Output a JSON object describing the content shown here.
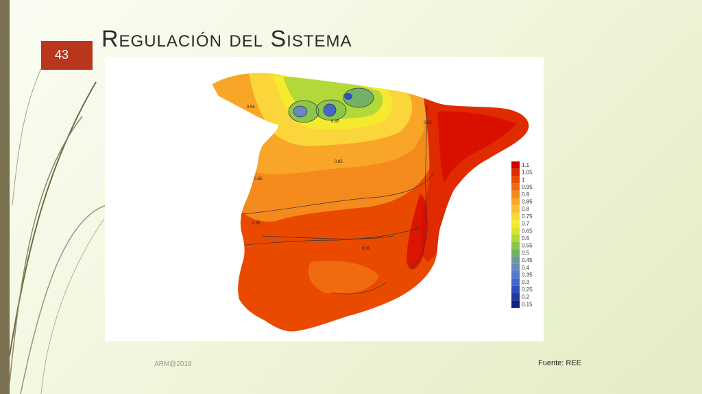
{
  "slide": {
    "number": "43",
    "title": "Regulación del Sistema",
    "footer_left": "ARM@2019",
    "footer_right": "Fuente: REE"
  },
  "map": {
    "region": "Spain",
    "legend": {
      "levels": [
        {
          "label": "1.1",
          "color": "#d40000"
        },
        {
          "label": "1.05",
          "color": "#e02a00"
        },
        {
          "label": "1",
          "color": "#ea4a00"
        },
        {
          "label": "0.95",
          "color": "#f06a10"
        },
        {
          "label": "0.9",
          "color": "#f58a1c"
        },
        {
          "label": "0.85",
          "color": "#f9a628"
        },
        {
          "label": "0.8",
          "color": "#fbc030"
        },
        {
          "label": "0.75",
          "color": "#fbd63a"
        },
        {
          "label": "0.7",
          "color": "#f5ea2e"
        },
        {
          "label": "0.65",
          "color": "#d7e62c"
        },
        {
          "label": "0.6",
          "color": "#b3d83a"
        },
        {
          "label": "0.55",
          "color": "#8cc64a"
        },
        {
          "label": "0.5",
          "color": "#74b068"
        },
        {
          "label": "0.45",
          "color": "#6a9c98"
        },
        {
          "label": "0.4",
          "color": "#6a88c0"
        },
        {
          "label": "0.35",
          "color": "#5878d0"
        },
        {
          "label": "0.3",
          "color": "#4466c8"
        },
        {
          "label": "0.25",
          "color": "#2e50b8"
        },
        {
          "label": "0.2",
          "color": "#1e3aa0"
        },
        {
          "label": "0.15",
          "color": "#0c2280"
        }
      ]
    },
    "contour_labels": [
      "0.95",
      "0.85",
      "0.85",
      "0.95",
      "0.95",
      "0.95",
      "0.85"
    ]
  }
}
